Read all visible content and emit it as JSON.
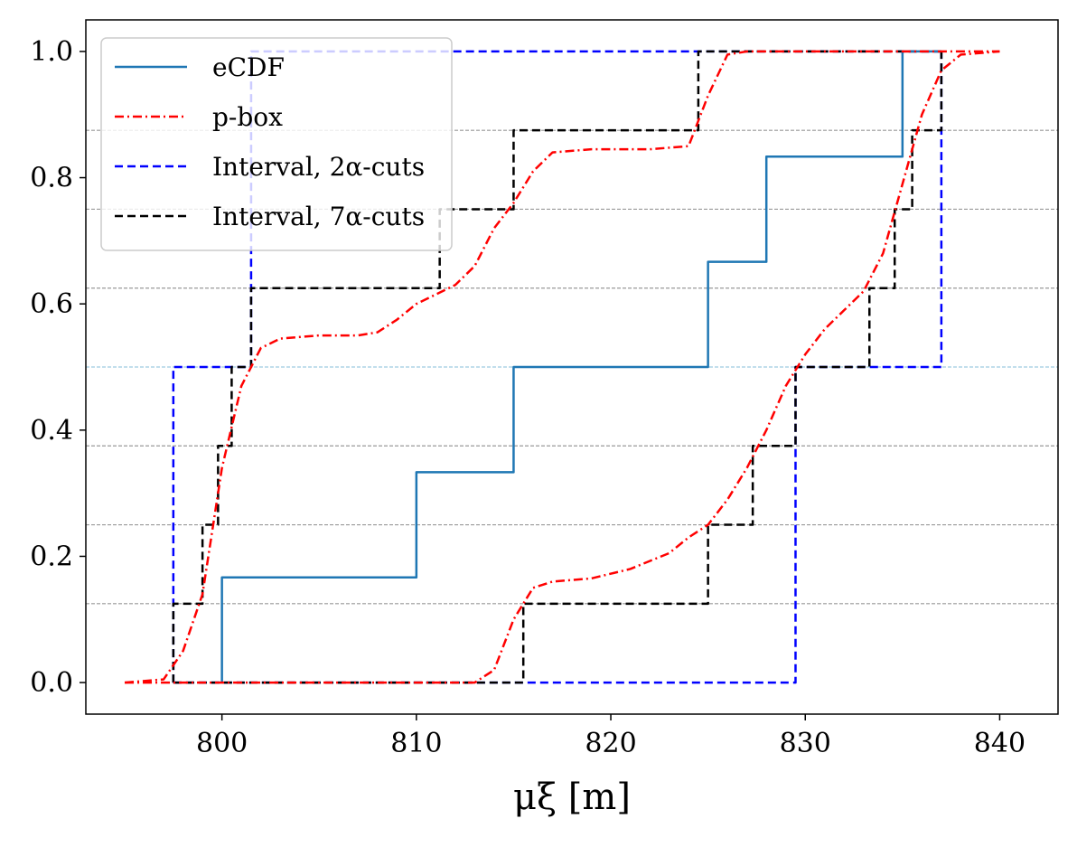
{
  "chart_data": {
    "type": "line",
    "xlabel": "μξ [m]",
    "ylabel": "",
    "xlim": [
      793,
      843
    ],
    "ylim": [
      -0.05,
      1.05
    ],
    "x_ticks": [
      800,
      810,
      820,
      830,
      840
    ],
    "y_ticks": [
      0.0,
      0.2,
      0.4,
      0.6,
      0.8,
      1.0
    ],
    "x_tick_labels": [
      "800",
      "810",
      "820",
      "830",
      "840"
    ],
    "y_tick_labels": [
      "0.0",
      "0.2",
      "0.4",
      "0.6",
      "0.8",
      "1.0"
    ],
    "grid": false,
    "legend_position": "top-left",
    "reference_lines": {
      "y": [
        0.125,
        0.25,
        0.375,
        0.5,
        0.625,
        0.75,
        0.875
      ],
      "color": "#999999",
      "style": "dashed",
      "note": "horizontal alpha-cut reference lines"
    },
    "series": [
      {
        "name": "eCDF",
        "style": "solid",
        "color": "#1f77b4",
        "points": [
          [
            800,
            0
          ],
          [
            800,
            0.1667
          ],
          [
            810,
            0.1667
          ],
          [
            810,
            0.3333
          ],
          [
            815,
            0.3333
          ],
          [
            815,
            0.5
          ],
          [
            825,
            0.5
          ],
          [
            825,
            0.6667
          ],
          [
            828,
            0.6667
          ],
          [
            828,
            0.8333
          ],
          [
            835,
            0.8333
          ],
          [
            835,
            1.0
          ],
          [
            837,
            1.0
          ]
        ]
      },
      {
        "name": "p-box",
        "style": "dashdot",
        "color": "#ff0000",
        "lower": [
          [
            795,
            0
          ],
          [
            797,
            0.005
          ],
          [
            798,
            0.05
          ],
          [
            799,
            0.14
          ],
          [
            800,
            0.34
          ],
          [
            801,
            0.47
          ],
          [
            802,
            0.53
          ],
          [
            803,
            0.545
          ],
          [
            805,
            0.55
          ],
          [
            807,
            0.55
          ],
          [
            808,
            0.555
          ],
          [
            809,
            0.575
          ],
          [
            810,
            0.6
          ],
          [
            811,
            0.615
          ],
          [
            812,
            0.63
          ],
          [
            813,
            0.66
          ],
          [
            814,
            0.72
          ],
          [
            815,
            0.76
          ],
          [
            816,
            0.81
          ],
          [
            817,
            0.84
          ],
          [
            819,
            0.845
          ],
          [
            822,
            0.845
          ],
          [
            824,
            0.85
          ],
          [
            825,
            0.93
          ],
          [
            826,
            0.995
          ],
          [
            827,
            1.0
          ],
          [
            840,
            1.0
          ]
        ],
        "upper": [
          [
            795,
            0
          ],
          [
            813,
            0
          ],
          [
            814,
            0.02
          ],
          [
            815,
            0.1
          ],
          [
            816,
            0.15
          ],
          [
            817,
            0.16
          ],
          [
            819,
            0.165
          ],
          [
            821,
            0.18
          ],
          [
            823,
            0.205
          ],
          [
            824,
            0.23
          ],
          [
            825,
            0.25
          ],
          [
            826,
            0.29
          ],
          [
            827,
            0.34
          ],
          [
            828,
            0.4
          ],
          [
            829,
            0.47
          ],
          [
            830,
            0.52
          ],
          [
            831,
            0.56
          ],
          [
            832,
            0.59
          ],
          [
            833,
            0.62
          ],
          [
            834,
            0.68
          ],
          [
            835,
            0.79
          ],
          [
            836,
            0.9
          ],
          [
            837,
            0.97
          ],
          [
            838,
            0.995
          ],
          [
            840,
            1.0
          ]
        ]
      },
      {
        "name": "Interval, 2α-cuts",
        "style": "dashed",
        "color": "#0000ff",
        "lower": [
          [
            797.5,
            0
          ],
          [
            797.5,
            0.5
          ],
          [
            801.5,
            0.5
          ],
          [
            801.5,
            1.0
          ],
          [
            837,
            1.0
          ]
        ],
        "upper": [
          [
            797.5,
            0
          ],
          [
            829.5,
            0
          ],
          [
            829.5,
            0.5
          ],
          [
            837,
            0.5
          ],
          [
            837,
            1.0
          ]
        ]
      },
      {
        "name": "Interval, 7α-cuts",
        "style": "dashed",
        "color": "#000000",
        "lower": [
          [
            797.5,
            0
          ],
          [
            797.5,
            0.125
          ],
          [
            799,
            0.125
          ],
          [
            799,
            0.25
          ],
          [
            799.8,
            0.25
          ],
          [
            799.8,
            0.375
          ],
          [
            800.5,
            0.375
          ],
          [
            800.5,
            0.5
          ],
          [
            801.5,
            0.5
          ],
          [
            801.5,
            0.625
          ],
          [
            811.2,
            0.625
          ],
          [
            811.2,
            0.75
          ],
          [
            815,
            0.75
          ],
          [
            815,
            0.875
          ],
          [
            824.5,
            0.875
          ],
          [
            824.5,
            1.0
          ],
          [
            837,
            1.0
          ]
        ],
        "upper": [
          [
            797.5,
            0
          ],
          [
            815.5,
            0
          ],
          [
            815.5,
            0.125
          ],
          [
            825,
            0.125
          ],
          [
            825,
            0.25
          ],
          [
            827.3,
            0.25
          ],
          [
            827.3,
            0.375
          ],
          [
            829.5,
            0.375
          ],
          [
            829.5,
            0.5
          ],
          [
            833.3,
            0.5
          ],
          [
            833.3,
            0.625
          ],
          [
            834.6,
            0.625
          ],
          [
            834.6,
            0.75
          ],
          [
            835.5,
            0.75
          ],
          [
            835.5,
            0.875
          ],
          [
            837,
            0.875
          ],
          [
            837,
            1.0
          ]
        ]
      }
    ]
  },
  "legend": {
    "items": [
      {
        "label": "eCDF"
      },
      {
        "label": "p-box"
      },
      {
        "label": "Interval, 2α-cuts"
      },
      {
        "label": "Interval, 7α-cuts"
      }
    ]
  }
}
